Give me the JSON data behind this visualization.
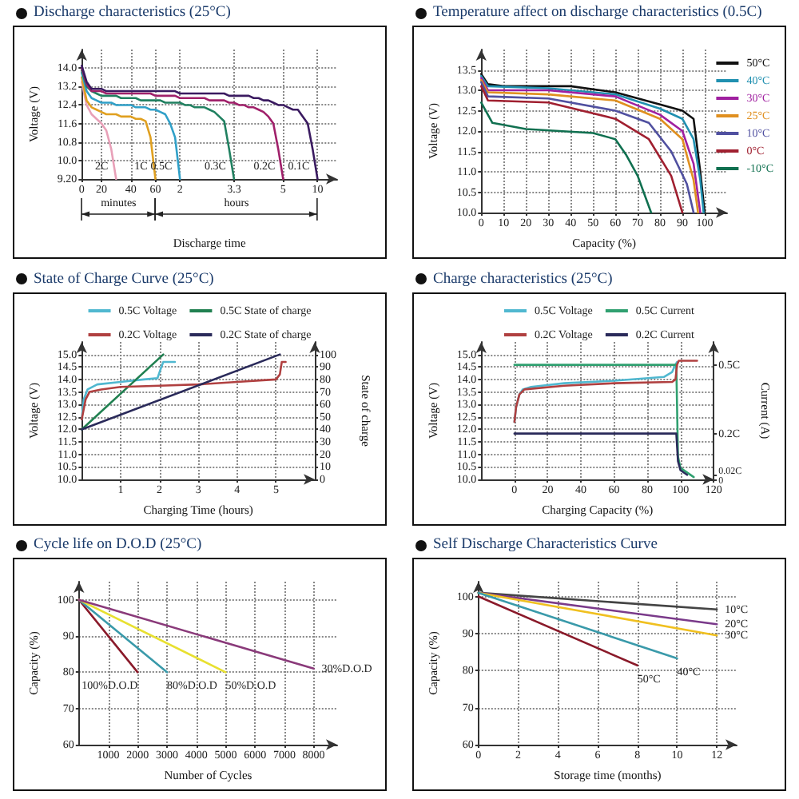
{
  "chart_data": [
    {
      "type": "line",
      "title": "Discharge characteristics (25°C)",
      "xlabel": "Discharge time",
      "ylabel": "Voltage (V)",
      "annotations": [
        "minutes",
        "hours"
      ],
      "grid": true,
      "categories": [
        "0",
        null,
        null,
        null,
        "20",
        null,
        null,
        null,
        null,
        null,
        "40",
        null,
        null,
        null,
        null,
        "60",
        null,
        null,
        null,
        null,
        "2",
        null,
        null,
        null,
        null,
        null,
        null,
        null,
        null,
        null,
        null,
        "3.3",
        null,
        null,
        null,
        null,
        null,
        null,
        null,
        null,
        null,
        "5",
        null,
        null,
        null,
        null,
        null,
        null,
        "10",
        null,
        null,
        null,
        null
      ],
      "ylim": [
        9.2,
        14.8
      ],
      "yticks": [
        {
          "value": 9.2,
          "label": "9.20"
        },
        {
          "value": 10,
          "label": "10.0"
        },
        10.8,
        11.6,
        12.4,
        13.2,
        {
          "value": 14,
          "label": "14.0"
        }
      ],
      "series": [
        {
          "name": "2C",
          "color": "#e8a0b8",
          "values": [
            13.4,
            12.4,
            12.0,
            11.8,
            11.6,
            11.3,
            10.5,
            9.2,
            null,
            null,
            null,
            null,
            null,
            null,
            null,
            null,
            null,
            null,
            null,
            null,
            null,
            null,
            null,
            null,
            null,
            null,
            null,
            null,
            null,
            null,
            null,
            null,
            null,
            null,
            null,
            null,
            null,
            null,
            null,
            null,
            null,
            null,
            null,
            null,
            null,
            null,
            null,
            null,
            null,
            null,
            null,
            null,
            null
          ]
        },
        {
          "name": "1C",
          "color": "#e0a020",
          "values": [
            13.6,
            12.6,
            12.3,
            12.2,
            12.1,
            12.0,
            12.0,
            12.0,
            11.9,
            11.9,
            11.9,
            11.8,
            11.8,
            11.7,
            11.0,
            9.2,
            null,
            null,
            null,
            null,
            null,
            null,
            null,
            null,
            null,
            null,
            null,
            null,
            null,
            null,
            null,
            null,
            null,
            null,
            null,
            null,
            null,
            null,
            null,
            null,
            null,
            null,
            null,
            null,
            null,
            null,
            null,
            null,
            null,
            null,
            null,
            null,
            null
          ]
        },
        {
          "name": "0.5C",
          "color": "#30a0c8",
          "values": [
            13.8,
            13.0,
            12.7,
            12.6,
            12.5,
            12.5,
            12.5,
            12.4,
            12.4,
            12.4,
            12.4,
            12.3,
            12.3,
            12.3,
            12.2,
            12.2,
            12.1,
            12.0,
            11.6,
            11.0,
            9.2,
            null,
            null,
            null,
            null,
            null,
            null,
            null,
            null,
            null,
            null,
            null,
            null,
            null,
            null,
            null,
            null,
            null,
            null,
            null,
            null,
            null,
            null,
            null,
            null,
            null,
            null,
            null,
            null,
            null,
            null,
            null,
            null
          ]
        },
        {
          "name": "0.3C",
          "color": "#208060",
          "values": [
            13.9,
            13.2,
            13.0,
            12.9,
            12.8,
            12.8,
            12.8,
            12.8,
            12.7,
            12.7,
            12.7,
            12.7,
            12.6,
            12.6,
            12.6,
            12.6,
            12.6,
            12.5,
            12.5,
            12.5,
            12.5,
            12.4,
            12.4,
            12.3,
            12.3,
            12.3,
            12.2,
            12.1,
            11.9,
            11.7,
            10.5,
            9.2,
            null,
            null,
            null,
            null,
            null,
            null,
            null,
            null,
            null,
            null,
            null,
            null,
            null,
            null,
            null,
            null,
            null,
            null,
            null,
            null,
            null
          ]
        },
        {
          "name": "0.2C",
          "color": "#a0206a",
          "values": [
            14.0,
            13.3,
            13.0,
            13.0,
            13.0,
            12.9,
            12.9,
            12.9,
            12.9,
            12.9,
            12.9,
            12.9,
            12.9,
            12.9,
            12.9,
            12.8,
            12.8,
            12.8,
            12.8,
            12.8,
            12.7,
            12.7,
            12.7,
            12.7,
            12.7,
            12.7,
            12.6,
            12.6,
            12.6,
            12.6,
            12.5,
            12.5,
            12.4,
            12.4,
            12.3,
            12.3,
            12.2,
            12.1,
            11.9,
            11.6,
            10.5,
            9.2,
            null,
            null,
            null,
            null,
            null,
            null,
            null,
            null,
            null,
            null,
            null
          ]
        },
        {
          "name": "0.1C",
          "color": "#3a1a60",
          "values": [
            14.1,
            13.4,
            13.1,
            13.1,
            13.1,
            13.0,
            13.0,
            13.0,
            13.0,
            13.0,
            13.0,
            13.0,
            13.0,
            13.0,
            13.0,
            13.0,
            13.0,
            13.0,
            13.0,
            13.0,
            12.9,
            12.9,
            12.9,
            12.9,
            12.9,
            12.9,
            12.9,
            12.9,
            12.9,
            12.9,
            12.8,
            12.8,
            12.8,
            12.8,
            12.8,
            12.7,
            12.7,
            12.6,
            12.6,
            12.5,
            12.4,
            12.4,
            12.3,
            12.2,
            12.2,
            11.9,
            11.6,
            10.5,
            9.2,
            null,
            null,
            null,
            null
          ]
        }
      ]
    },
    {
      "type": "line",
      "title": "Temperature affect on discharge characteristics (0.5C)",
      "xlabel": "Capacity (%)",
      "ylabel": "Voltage (V)",
      "grid": true,
      "legend": "top right",
      "xlim": [
        0,
        110
      ],
      "xticks": [
        0,
        10,
        20,
        30,
        40,
        50,
        60,
        70,
        80,
        90,
        100
      ],
      "ylim": [
        10,
        14
      ],
      "yticks": [
        {
          "value": 10,
          "label": "10.0"
        },
        10.5,
        {
          "value": 11,
          "label": "11.0"
        },
        11.5,
        {
          "value": 12,
          "label": "12.0"
        },
        12.5,
        {
          "value": 13,
          "label": "13.0"
        },
        13.5
      ],
      "series": [
        {
          "name": "50°C",
          "color": "#111111",
          "x": [
            0,
            3,
            10,
            40,
            60,
            80,
            90,
            95,
            98,
            100
          ],
          "values": [
            13.4,
            13.15,
            13.1,
            13.1,
            12.95,
            12.65,
            12.5,
            12.3,
            11.0,
            10.0
          ]
        },
        {
          "name": "40°C",
          "color": "#2090b0",
          "x": [
            0,
            3,
            30,
            60,
            80,
            90,
            95,
            98,
            99.5
          ],
          "values": [
            13.35,
            13.1,
            13.05,
            12.9,
            12.55,
            12.3,
            11.8,
            10.8,
            10.0
          ]
        },
        {
          "name": "30°C",
          "color": "#a020a0",
          "x": [
            0,
            3,
            30,
            60,
            80,
            90,
            95,
            98
          ],
          "values": [
            13.3,
            13.0,
            13.0,
            12.85,
            12.4,
            12.0,
            11.2,
            10.0
          ]
        },
        {
          "name": "25°C",
          "color": "#e09020",
          "x": [
            0,
            3,
            30,
            60,
            80,
            90,
            95,
            97
          ],
          "values": [
            13.25,
            12.95,
            12.9,
            12.75,
            12.3,
            11.8,
            10.8,
            10.0
          ]
        },
        {
          "name": "10°C",
          "color": "#5050a0",
          "x": [
            0,
            3,
            30,
            60,
            75,
            85,
            92,
            95
          ],
          "values": [
            13.2,
            12.85,
            12.8,
            12.5,
            12.2,
            11.5,
            10.7,
            10.0
          ]
        },
        {
          "name": "0°C",
          "color": "#a02030",
          "x": [
            0,
            3,
            30,
            60,
            75,
            85,
            90
          ],
          "values": [
            13.1,
            12.75,
            12.7,
            12.3,
            11.8,
            10.9,
            10.0
          ]
        },
        {
          "name": "-10°C",
          "color": "#107050",
          "x": [
            0,
            5,
            20,
            50,
            60,
            65,
            70,
            74,
            76
          ],
          "values": [
            12.7,
            12.2,
            12.05,
            11.95,
            11.8,
            11.4,
            10.9,
            10.3,
            10.0
          ]
        }
      ]
    },
    {
      "type": "line",
      "title": "State of Charge Curve (25°C)",
      "xlabel": "Charging Time (hours)",
      "ylabel": "Voltage (V)",
      "y2label": "State of charge",
      "grid": true,
      "legend": "top",
      "xlim": [
        0,
        6
      ],
      "xticks": [
        1,
        2,
        3,
        4,
        5
      ],
      "ylim": [
        10,
        15.5
      ],
      "yticks": [
        {
          "value": 10,
          "label": "10.0"
        },
        10.5,
        {
          "value": 11,
          "label": "11.0"
        },
        11.5,
        {
          "value": 12,
          "label": "12.0"
        },
        12.5,
        {
          "value": 13,
          "label": "13.0"
        },
        13.5,
        {
          "value": 14,
          "label": "14.0"
        },
        14.5,
        {
          "value": 15,
          "label": "15.0"
        }
      ],
      "y2lim": [
        0,
        110
      ],
      "y2ticks": [
        0,
        10,
        20,
        30,
        40,
        50,
        60,
        70,
        80,
        90,
        100
      ],
      "series": [
        {
          "name": "0.5C Voltage",
          "color": "#50b8d0",
          "x": [
            0,
            0.05,
            0.15,
            0.4,
            1,
            1.6,
            1.95,
            2.05,
            2.1,
            2.4
          ],
          "values": [
            12.4,
            13.2,
            13.6,
            13.8,
            13.9,
            14.0,
            14.05,
            14.5,
            14.7,
            14.7
          ]
        },
        {
          "name": "0.5C State of charge",
          "color": "#208050",
          "axis": "y2",
          "x": [
            0,
            2.1
          ],
          "values": [
            40,
            100
          ]
        },
        {
          "name": "0.2C Voltage",
          "color": "#b04040",
          "x": [
            0,
            0.1,
            0.2,
            0.5,
            1,
            2,
            3,
            4,
            5,
            5.1,
            5.15,
            5.25
          ],
          "values": [
            12.4,
            13.2,
            13.5,
            13.6,
            13.7,
            13.75,
            13.8,
            13.9,
            14.0,
            14.2,
            14.7,
            14.7
          ]
        },
        {
          "name": "0.2C State of charge",
          "color": "#2a2a5a",
          "axis": "y2",
          "x": [
            0,
            5.1
          ],
          "values": [
            40,
            100
          ]
        }
      ]
    },
    {
      "type": "line",
      "title": "Charge characteristics (25°C)",
      "xlabel": "Charging Capacity (%)",
      "ylabel": "Voltage (V)",
      "y2label": "Current (A)",
      "grid": true,
      "legend": "top",
      "xlim": [
        -20,
        120
      ],
      "xticks": [
        0,
        20,
        40,
        60,
        80,
        100,
        120
      ],
      "ylim": [
        10,
        15.5
      ],
      "yticks": [
        {
          "value": 10,
          "label": "10.0"
        },
        10.5,
        {
          "value": 11,
          "label": "11.0"
        },
        11.5,
        {
          "value": 12,
          "label": "12.0"
        },
        12.5,
        {
          "value": 13,
          "label": "13.0"
        },
        13.5,
        {
          "value": 14,
          "label": "14.0"
        },
        14.5,
        {
          "value": 15,
          "label": "15.0"
        }
      ],
      "y2lim": [
        0,
        0.6
      ],
      "y2ticks": [
        {
          "value": 0,
          "label": "0"
        },
        {
          "value": 0.02,
          "label": "0.02C"
        },
        {
          "value": 0.2,
          "label": "0.2C"
        },
        {
          "value": 0.5,
          "label": "0.5C"
        }
      ],
      "series": [
        {
          "name": "0.5C Voltage",
          "color": "#50b8d0",
          "x": [
            0,
            1,
            3,
            5,
            10,
            30,
            60,
            90,
            95,
            97,
            98
          ],
          "values": [
            12.3,
            12.9,
            13.4,
            13.6,
            13.7,
            13.85,
            13.95,
            14.1,
            14.3,
            14.6,
            14.7
          ]
        },
        {
          "name": "0.5C Current",
          "color": "#30a070",
          "axis": "y2",
          "x": [
            0,
            97.5,
            98.5,
            100,
            108
          ],
          "values": [
            0.5,
            0.5,
            0.1,
            0.05,
            0.01
          ]
        },
        {
          "name": "0.2C Voltage",
          "color": "#b04040",
          "x": [
            0,
            1,
            3,
            6,
            30,
            60,
            95,
            97,
            98,
            99,
            110
          ],
          "values": [
            12.3,
            12.9,
            13.4,
            13.6,
            13.75,
            13.85,
            13.9,
            14.0,
            14.6,
            14.75,
            14.75
          ]
        },
        {
          "name": "0.2C Current",
          "color": "#2a2a5a",
          "axis": "y2",
          "x": [
            0,
            97.5,
            98.5,
            100,
            104
          ],
          "values": [
            0.2,
            0.2,
            0.08,
            0.04,
            0.02
          ]
        }
      ]
    },
    {
      "type": "line",
      "title": "Cycle life on D.O.D (25°C)",
      "xlabel": "Number of Cycles",
      "ylabel": "Capacity (%)",
      "grid": true,
      "xlim": [
        0,
        8800
      ],
      "xticks": [
        1000,
        2000,
        3000,
        4000,
        5000,
        6000,
        7000,
        8000
      ],
      "ylim": [
        60,
        105
      ],
      "yticks": [
        60,
        70,
        80,
        90,
        100
      ],
      "series": [
        {
          "name": "100%D.O.D",
          "color": "#8a1a2a",
          "x": [
            0,
            2000
          ],
          "values": [
            100,
            80
          ]
        },
        {
          "name": "80%D.O.D",
          "color": "#3a9aaa",
          "x": [
            0,
            3000
          ],
          "values": [
            100,
            80
          ]
        },
        {
          "name": "50%D.O.D",
          "color": "#e8e030",
          "x": [
            0,
            5000
          ],
          "values": [
            100,
            80
          ]
        },
        {
          "name": "30%D.O.D",
          "color": "#8a3a7a",
          "x": [
            0,
            8000
          ],
          "values": [
            100,
            81
          ]
        }
      ]
    },
    {
      "type": "line",
      "title": "Self Discharge Characteristics Curve",
      "xlabel": "Storage time (months)",
      "ylabel": "Capacity (%)",
      "grid": true,
      "xlim": [
        0,
        13
      ],
      "xticks": [
        0,
        2,
        4,
        6,
        8,
        10,
        12
      ],
      "ylim": [
        60,
        104
      ],
      "yticks": [
        60,
        70,
        80,
        90,
        100
      ],
      "series": [
        {
          "name": "10°C",
          "color": "#444444",
          "x": [
            0,
            12
          ],
          "values": [
            101,
            96.5
          ]
        },
        {
          "name": "20°C",
          "color": "#7a3a8a",
          "x": [
            0,
            12
          ],
          "values": [
            101,
            92.5
          ]
        },
        {
          "name": "30°C",
          "color": "#f0c020",
          "x": [
            0,
            12
          ],
          "values": [
            101,
            89.5
          ]
        },
        {
          "name": "40°C",
          "color": "#3a9aaa",
          "x": [
            0,
            10
          ],
          "values": [
            101,
            83.3
          ]
        },
        {
          "name": "50°C",
          "color": "#8a1a2a",
          "x": [
            0,
            8
          ],
          "values": [
            100,
            81.4
          ]
        }
      ]
    }
  ]
}
